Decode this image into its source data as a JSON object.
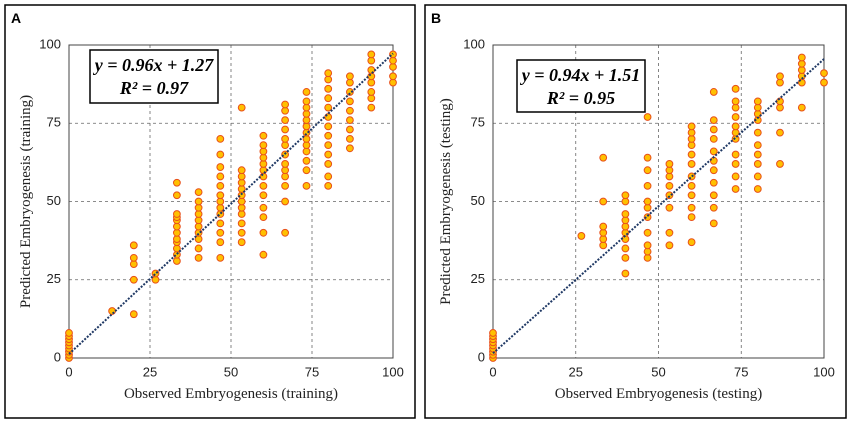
{
  "chart_data": [
    {
      "type": "scatter",
      "panel": "A",
      "xlabel": "Observed Embryogenesis (training)",
      "ylabel": "Predicted Embryogenesis (training)",
      "equation": "y = 0.96x + 1.27",
      "r2": "R² = 0.97",
      "fit": {
        "slope": 0.96,
        "intercept": 1.27
      },
      "xlim": [
        0,
        100
      ],
      "ylim": [
        0,
        100
      ],
      "xticks": [
        0,
        25,
        50,
        75,
        100
      ],
      "yticks": [
        0,
        25,
        50,
        75,
        100
      ],
      "grid": true,
      "color": "#ffc000",
      "edgecolor": "#e8501a",
      "line_color": "#1f3864",
      "x": [
        0,
        0,
        0,
        0,
        0,
        0,
        0,
        0,
        0,
        13.3,
        20,
        20,
        20,
        20,
        20,
        26.7,
        26.7,
        33.3,
        33.3,
        33.3,
        33.3,
        33.3,
        33.3,
        33.3,
        33.3,
        33.3,
        33.3,
        33.3,
        33.3,
        40,
        40,
        40,
        40,
        40,
        40,
        40,
        40,
        40,
        40,
        46.7,
        46.7,
        46.7,
        46.7,
        46.7,
        46.7,
        46.7,
        46.7,
        46.7,
        46.7,
        46.7,
        46.7,
        46.7,
        53.3,
        53.3,
        53.3,
        53.3,
        53.3,
        53.3,
        53.3,
        53.3,
        53.3,
        53.3,
        53.3,
        53.3,
        60,
        60,
        60,
        60,
        60,
        60,
        60,
        60,
        60,
        60,
        60,
        60,
        60,
        66.7,
        66.7,
        66.7,
        66.7,
        66.7,
        66.7,
        66.7,
        66.7,
        66.7,
        66.7,
        66.7,
        66.7,
        66.7,
        73.3,
        73.3,
        73.3,
        73.3,
        73.3,
        73.3,
        73.3,
        73.3,
        73.3,
        73.3,
        73.3,
        73.3,
        73.3,
        80,
        80,
        80,
        80,
        80,
        80,
        80,
        80,
        80,
        80,
        80,
        80,
        80,
        86.7,
        86.7,
        86.7,
        86.7,
        86.7,
        86.7,
        86.7,
        86.7,
        86.7,
        93.3,
        93.3,
        93.3,
        93.3,
        93.3,
        93.3,
        93.3,
        93.3,
        100,
        100,
        100,
        100,
        100
      ],
      "values": [
        0,
        1,
        2,
        3,
        4,
        5,
        6,
        7,
        8,
        15,
        14,
        25,
        30,
        32,
        36,
        25,
        27,
        31,
        33,
        35,
        37,
        38,
        40,
        42,
        44,
        45,
        46,
        52,
        56,
        32,
        35,
        38,
        40,
        42,
        44,
        46,
        48,
        50,
        53,
        32,
        37,
        40,
        43,
        46,
        48,
        50,
        52,
        55,
        58,
        61,
        65,
        70,
        37,
        40,
        43,
        46,
        48,
        50,
        52,
        54,
        56,
        58,
        60,
        80,
        33,
        40,
        45,
        48,
        52,
        55,
        58,
        60,
        62,
        64,
        66,
        68,
        71,
        40,
        50,
        55,
        58,
        60,
        62,
        65,
        68,
        70,
        73,
        76,
        79,
        81,
        55,
        60,
        63,
        66,
        68,
        70,
        72,
        74,
        76,
        78,
        80,
        82,
        85,
        55,
        58,
        62,
        65,
        68,
        71,
        74,
        77,
        80,
        83,
        86,
        89,
        91,
        67,
        70,
        73,
        76,
        79,
        82,
        85,
        88,
        90,
        80,
        83,
        85,
        88,
        90,
        92,
        95,
        97,
        88,
        90,
        93,
        95,
        97
      ]
    },
    {
      "type": "scatter",
      "panel": "B",
      "xlabel": "Observed Embryogenesis (testing)",
      "ylabel": "Predicted Embryogenesis (testing)",
      "equation": "y = 0.94x + 1.51",
      "r2": "R² = 0.95",
      "fit": {
        "slope": 0.94,
        "intercept": 1.51
      },
      "xlim": [
        0,
        100
      ],
      "ylim": [
        0,
        100
      ],
      "xticks": [
        0,
        25,
        50,
        75,
        100
      ],
      "yticks": [
        0,
        25,
        50,
        75,
        100
      ],
      "grid": true,
      "color": "#ffc000",
      "edgecolor": "#e8501a",
      "line_color": "#1f3864",
      "x": [
        0,
        0,
        0,
        0,
        0,
        0,
        0,
        0,
        0,
        26.7,
        33.3,
        33.3,
        33.3,
        33.3,
        33.3,
        33.3,
        40,
        40,
        40,
        40,
        40,
        40,
        40,
        40,
        40,
        40,
        46.7,
        46.7,
        46.7,
        46.7,
        46.7,
        46.7,
        46.7,
        46.7,
        46.7,
        46.7,
        46.7,
        53.3,
        53.3,
        53.3,
        53.3,
        53.3,
        53.3,
        53.3,
        53.3,
        60,
        60,
        60,
        60,
        60,
        60,
        60,
        60,
        60,
        60,
        60,
        60,
        66.7,
        66.7,
        66.7,
        66.7,
        66.7,
        66.7,
        66.7,
        66.7,
        66.7,
        66.7,
        66.7,
        73.3,
        73.3,
        73.3,
        73.3,
        73.3,
        73.3,
        73.3,
        73.3,
        73.3,
        73.3,
        73.3,
        80,
        80,
        80,
        80,
        80,
        80,
        80,
        80,
        80,
        80,
        86.7,
        86.7,
        86.7,
        86.7,
        86.7,
        86.7,
        93.3,
        93.3,
        93.3,
        93.3,
        93.3,
        93.3,
        100,
        100
      ],
      "values": [
        0,
        1,
        2,
        3,
        4,
        5,
        6,
        7,
        8,
        39,
        36,
        38,
        40,
        42,
        50,
        64,
        27,
        32,
        35,
        38,
        40,
        42,
        44,
        46,
        50,
        52,
        32,
        34,
        36,
        40,
        45,
        48,
        50,
        55,
        60,
        64,
        77,
        36,
        40,
        48,
        52,
        55,
        58,
        60,
        62,
        37,
        45,
        48,
        52,
        55,
        58,
        62,
        65,
        68,
        70,
        72,
        74,
        43,
        48,
        52,
        56,
        60,
        63,
        66,
        70,
        73,
        76,
        85,
        54,
        58,
        62,
        65,
        70,
        72,
        74,
        77,
        80,
        82,
        86,
        54,
        58,
        62,
        65,
        68,
        72,
        76,
        78,
        80,
        82,
        62,
        72,
        80,
        82,
        88,
        90,
        80,
        88,
        90,
        92,
        94,
        96,
        88,
        91
      ]
    }
  ]
}
